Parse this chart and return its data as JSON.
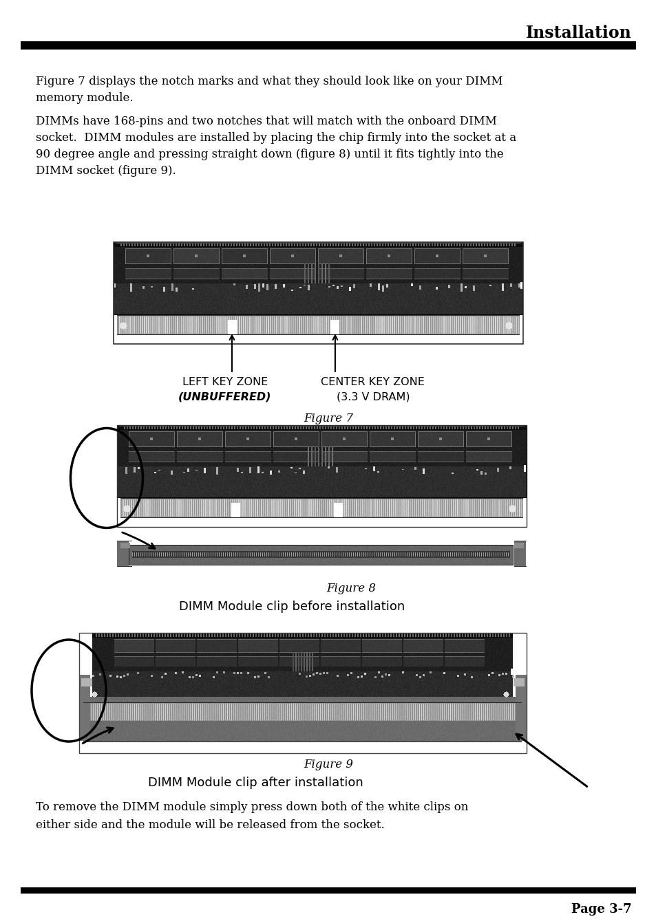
{
  "title": "Installation",
  "bg_color": "#ffffff",
  "text_color": "#000000",
  "para1": "Figure 7 displays the notch marks and what they should look like on your DIMM\nmemory module.",
  "para2": "DIMMs have 168-pins and two notches that will match with the onboard DIMM\nsocket.  DIMM modules are installed by placing the chip firmly into the socket at a\n90 degree angle and pressing straight down (figure 8) until it fits tightly into the\nDIMM socket (figure 9).",
  "fig7_caption": "Figure 7",
  "fig8_caption": "Figure 8",
  "fig9_caption": "Figure 9",
  "label_left_key_zone_line1": "LEFT KEY ZONE",
  "label_left_key_zone_line2": "(UNBUFFERED)",
  "label_center_key_zone_line1": "CENTER KEY ZONE",
  "label_center_key_zone_line2": "(3.3 V DRAM)",
  "label_dimm_before": "DIMM Module clip before installation",
  "label_dimm_after": "DIMM Module clip after installation",
  "footer_text": "Page 3-7",
  "para_bottom": "To remove the DIMM module simply press down both of the white clips on\neither side and the module will be released from the socket."
}
